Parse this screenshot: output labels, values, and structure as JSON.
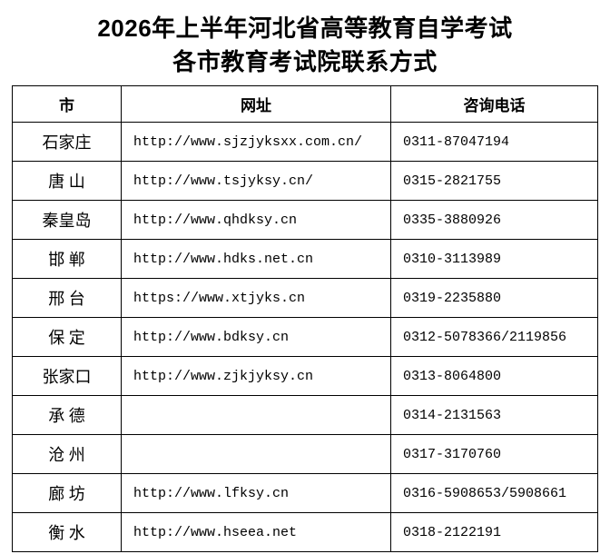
{
  "page": {
    "title_line1": "2026年上半年河北省高等教育自学考试",
    "title_line2": "各市教育考试院联系方式"
  },
  "table": {
    "columns": [
      "市",
      "网址",
      "咨询电话"
    ],
    "rows": [
      {
        "city": "石家庄",
        "url": "http://www.sjzjyksxx.com.cn/",
        "phone": "0311-87047194"
      },
      {
        "city": "唐 山",
        "url": "http://www.tsjyksy.cn/",
        "phone": "0315-2821755"
      },
      {
        "city": "秦皇岛",
        "url": "http://www.qhdksy.cn",
        "phone": "0335-3880926"
      },
      {
        "city": "邯 郸",
        "url": "http://www.hdks.net.cn",
        "phone": "0310-3113989"
      },
      {
        "city": "邢 台",
        "url": "https://www.xtjyks.cn",
        "phone": "0319-2235880"
      },
      {
        "city": "保 定",
        "url": "http://www.bdksy.cn",
        "phone": "0312-5078366/2119856"
      },
      {
        "city": "张家口",
        "url": "http://www.zjkjyksy.cn",
        "phone": "0313-8064800"
      },
      {
        "city": "承 德",
        "url": "",
        "phone": "0314-2131563"
      },
      {
        "city": "沧 州",
        "url": "",
        "phone": "0317-3170760"
      },
      {
        "city": "廊 坊",
        "url": "http://www.lfksy.cn",
        "phone": "0316-5908653/5908661"
      },
      {
        "city": "衡 水",
        "url": "http://www.hseea.net",
        "phone": "0318-2122191"
      }
    ]
  },
  "colors": {
    "background": "#ffffff",
    "text": "#000000",
    "border": "#000000"
  }
}
